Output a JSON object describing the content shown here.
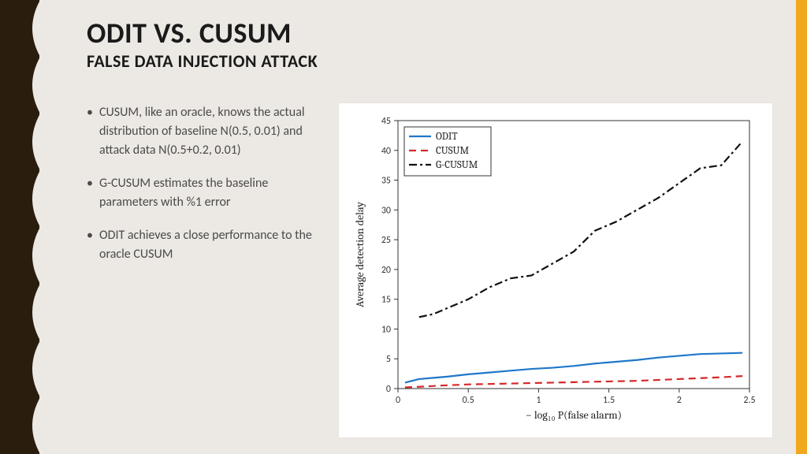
{
  "title_line1": "ODIT VS. CUSUM",
  "title_line2": "FALSE DATA INJECTION ATTACK",
  "bullets": [
    "CUSUM, like an oracle, knows the actual distribution of baseline N(0.5, 0.01) and attack data N(0.5+0.2, 0.01)",
    "G-CUSUM estimates the baseline parameters with %1 error",
    "ODIT achieves a close performance to the oracle CUSUM"
  ],
  "left_border_color": "#2a1d0e",
  "right_border_color": "#f0a81e",
  "page_bg": "#ece9e4",
  "chart": {
    "type": "line",
    "background_color": "#ffffff",
    "plot_border_color": "#333333",
    "axis_color": "#333333",
    "tick_fontsize": 12,
    "label_fontsize": 14,
    "xlabel": "− log₁₀ P(false alarm)",
    "ylabel": "Average detection delay",
    "xlim": [
      0,
      2.5
    ],
    "ylim": [
      0,
      45
    ],
    "xticks": [
      0,
      0.5,
      1,
      1.5,
      2,
      2.5
    ],
    "yticks": [
      0,
      5,
      10,
      15,
      20,
      25,
      30,
      35,
      40,
      45
    ],
    "legend": {
      "position": "top-left",
      "border_color": "#333333",
      "bg": "#ffffff",
      "fontsize": 13,
      "items": [
        {
          "label": "ODIT",
          "color": "#1f77c9",
          "dash": "solid",
          "width": 2.2
        },
        {
          "label": "CUSUM",
          "color": "#d62728",
          "dash": "dash",
          "width": 2.2
        },
        {
          "label": "G-CUSUM",
          "color": "#111111",
          "dash": "dashdot",
          "width": 2.2
        }
      ]
    },
    "series": [
      {
        "name": "ODIT",
        "color": "#1f77c9",
        "dash": "solid",
        "width": 2.2,
        "x": [
          0.05,
          0.15,
          0.25,
          0.35,
          0.5,
          0.65,
          0.8,
          0.95,
          1.1,
          1.25,
          1.4,
          1.55,
          1.7,
          1.85,
          2.0,
          2.15,
          2.3,
          2.45
        ],
        "y": [
          1.0,
          1.6,
          1.8,
          2.0,
          2.4,
          2.7,
          3.0,
          3.3,
          3.5,
          3.8,
          4.2,
          4.5,
          4.8,
          5.2,
          5.5,
          5.8,
          5.9,
          6.0
        ]
      },
      {
        "name": "CUSUM",
        "color": "#d62728",
        "dash": "dash",
        "width": 2.2,
        "x": [
          0.05,
          0.15,
          0.3,
          0.5,
          0.7,
          0.9,
          1.1,
          1.3,
          1.5,
          1.7,
          1.9,
          2.1,
          2.3,
          2.45
        ],
        "y": [
          0.2,
          0.3,
          0.5,
          0.7,
          0.8,
          0.9,
          1.0,
          1.1,
          1.2,
          1.3,
          1.5,
          1.7,
          1.9,
          2.1
        ]
      },
      {
        "name": "G-CUSUM",
        "color": "#111111",
        "dash": "dashdot",
        "width": 2.2,
        "x": [
          0.15,
          0.25,
          0.35,
          0.5,
          0.65,
          0.8,
          0.95,
          1.1,
          1.25,
          1.4,
          1.55,
          1.7,
          1.85,
          2.0,
          2.15,
          2.3,
          2.45
        ],
        "y": [
          12.0,
          12.5,
          13.5,
          15.0,
          17.0,
          18.5,
          19.0,
          21.0,
          23.0,
          26.5,
          28.0,
          30.0,
          32.0,
          34.5,
          37.0,
          37.5,
          41.5
        ]
      }
    ]
  }
}
